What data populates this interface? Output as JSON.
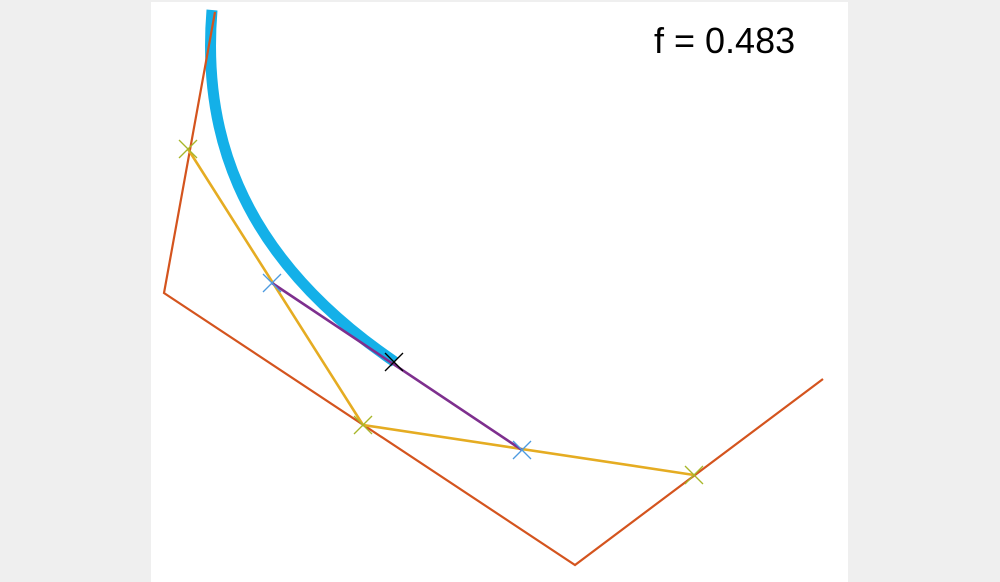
{
  "readout": {
    "text": "f = 0.483",
    "param_value": 0.483
  },
  "colors": {
    "control_polygon": "#d4541e",
    "level1": "#e5ac22",
    "level2": "#7e2f8e",
    "curve": "#14b0e8",
    "marker_level1": "#a8b62a",
    "marker_level2": "#4d9be0",
    "marker_point": "#000000",
    "background": "#efefef",
    "axes_background": "#ffffff"
  }
}
